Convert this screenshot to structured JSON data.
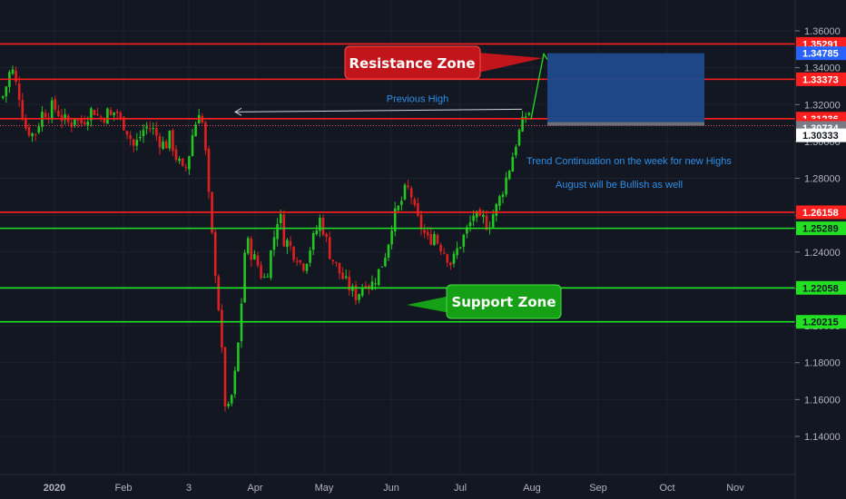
{
  "chart_data": {
    "type": "candlestick",
    "theme": {
      "background": "#131722",
      "up": "#22c722",
      "down": "#e02020",
      "grid": "#1e2230",
      "axis_text": "#b2b5be"
    },
    "x_labels": [
      "2020",
      "Feb",
      "3",
      "Apr",
      "May",
      "Jun",
      "Jul",
      "Aug",
      "Sep",
      "Oct",
      "Nov"
    ],
    "y_ticks": [
      "1.36000",
      "1.34000",
      "1.32000",
      "1.30000",
      "1.28000",
      "1.26000",
      "1.24000",
      "1.22000",
      "1.20000",
      "1.18000",
      "1.16000",
      "1.14000"
    ],
    "ylim": [
      1.13,
      1.372
    ],
    "horizontal_lines": [
      {
        "value": 1.35291,
        "label": "1.35291",
        "color": "#ff1f1f"
      },
      {
        "value": 1.33373,
        "label": "1.33373",
        "color": "#ff1f1f"
      },
      {
        "value": 1.31236,
        "label": "1.31236",
        "color": "#ff1f1f"
      },
      {
        "value": 1.26158,
        "label": "1.26158",
        "color": "#ff1f1f"
      },
      {
        "value": 1.25289,
        "label": "1.25289",
        "color": "#22e022"
      },
      {
        "value": 1.22058,
        "label": "1.22058",
        "color": "#22e022"
      },
      {
        "value": 1.20215,
        "label": "1.20215",
        "color": "#22e022"
      }
    ],
    "price_tags": [
      {
        "value": 1.34785,
        "label": "1.34785",
        "bg": "#2962ff",
        "fg": "#ffffff"
      },
      {
        "value": 1.30855,
        "label": "1.30855",
        "bg": "#ff1f1f",
        "fg": "#ffffff"
      },
      {
        "value": 1.30734,
        "label": "1.30734",
        "bg": "#787b86",
        "fg": "#ffffff"
      },
      {
        "value": 1.30333,
        "label": "1.30333",
        "bg": "#ffffff",
        "fg": "#131722"
      }
    ],
    "target_box": {
      "top": 1.34785,
      "bottom": 1.3105,
      "band_bottom": 1.30855,
      "color": "#1e4a8c"
    },
    "annotations": {
      "resistance": "Resistance Zone",
      "support": "Support Zone",
      "previous_high": "Previous High",
      "note1": "Trend Continuation on the week for new Highs",
      "note2": "August will be Bullish as well"
    },
    "price_path": [
      [
        0,
        1.325
      ],
      [
        4,
        1.322
      ],
      [
        9,
        1.33
      ],
      [
        11,
        1.332
      ],
      [
        15,
        1.343
      ],
      [
        18,
        1.332
      ],
      [
        22,
        1.33
      ],
      [
        26,
        1.318
      ],
      [
        30,
        1.308
      ],
      [
        36,
        1.305
      ],
      [
        40,
        1.303
      ],
      [
        45,
        1.31
      ],
      [
        50,
        1.317
      ],
      [
        55,
        1.315
      ],
      [
        60,
        1.319
      ],
      [
        65,
        1.317
      ],
      [
        70,
        1.313
      ],
      [
        75,
        1.311
      ],
      [
        80,
        1.309
      ],
      [
        85,
        1.314
      ],
      [
        90,
        1.309
      ],
      [
        95,
        1.312
      ],
      [
        100,
        1.315
      ],
      [
        105,
        1.318
      ],
      [
        110,
        1.314
      ],
      [
        115,
        1.312
      ],
      [
        120,
        1.316
      ],
      [
        125,
        1.313
      ],
      [
        130,
        1.318
      ],
      [
        135,
        1.311
      ],
      [
        140,
        1.309
      ],
      [
        145,
        1.303
      ],
      [
        150,
        1.297
      ],
      [
        155,
        1.301
      ],
      [
        160,
        1.306
      ],
      [
        165,
        1.308
      ],
      [
        170,
        1.307
      ],
      [
        175,
        1.303
      ],
      [
        180,
        1.299
      ],
      [
        185,
        1.298
      ],
      [
        190,
        1.303
      ],
      [
        195,
        1.293
      ],
      [
        200,
        1.288
      ],
      [
        205,
        1.282
      ],
      [
        210,
        1.291
      ],
      [
        214,
        1.303
      ],
      [
        218,
        1.31
      ],
      [
        222,
        1.318
      ],
      [
        226,
        1.308
      ],
      [
        230,
        1.287
      ],
      [
        234,
        1.258
      ],
      [
        238,
        1.238
      ],
      [
        242,
        1.218
      ],
      [
        246,
        1.192
      ],
      [
        249,
        1.165
      ],
      [
        252,
        1.15
      ],
      [
        256,
        1.158
      ],
      [
        260,
        1.168
      ],
      [
        264,
        1.185
      ],
      [
        268,
        1.21
      ],
      [
        272,
        1.24
      ],
      [
        276,
        1.245
      ],
      [
        280,
        1.238
      ],
      [
        285,
        1.235
      ],
      [
        290,
        1.228
      ],
      [
        295,
        1.225
      ],
      [
        300,
        1.238
      ],
      [
        305,
        1.25
      ],
      [
        310,
        1.263
      ],
      [
        315,
        1.247
      ],
      [
        320,
        1.245
      ],
      [
        325,
        1.24
      ],
      [
        330,
        1.238
      ],
      [
        335,
        1.232
      ],
      [
        340,
        1.236
      ],
      [
        345,
        1.244
      ],
      [
        350,
        1.25
      ],
      [
        355,
        1.258
      ],
      [
        360,
        1.25
      ],
      [
        365,
        1.24
      ],
      [
        370,
        1.235
      ],
      [
        375,
        1.23
      ],
      [
        380,
        1.226
      ],
      [
        385,
        1.222
      ],
      [
        390,
        1.219
      ],
      [
        395,
        1.216
      ],
      [
        400,
        1.22
      ],
      [
        405,
        1.225
      ],
      [
        410,
        1.221
      ],
      [
        415,
        1.225
      ],
      [
        420,
        1.23
      ],
      [
        425,
        1.236
      ],
      [
        430,
        1.245
      ],
      [
        435,
        1.258
      ],
      [
        440,
        1.262
      ],
      [
        445,
        1.268
      ],
      [
        450,
        1.275
      ],
      [
        455,
        1.272
      ],
      [
        460,
        1.26
      ],
      [
        465,
        1.255
      ],
      [
        470,
        1.25
      ],
      [
        475,
        1.245
      ],
      [
        480,
        1.251
      ],
      [
        485,
        1.245
      ],
      [
        490,
        1.242
      ],
      [
        495,
        1.238
      ],
      [
        500,
        1.233
      ],
      [
        505,
        1.24
      ],
      [
        510,
        1.245
      ],
      [
        515,
        1.25
      ],
      [
        520,
        1.255
      ],
      [
        525,
        1.262
      ],
      [
        530,
        1.255
      ],
      [
        535,
        1.258
      ],
      [
        540,
        1.254
      ],
      [
        545,
        1.26
      ],
      [
        550,
        1.265
      ],
      [
        555,
        1.272
      ],
      [
        560,
        1.28
      ],
      [
        565,
        1.288
      ],
      [
        570,
        1.298
      ],
      [
        575,
        1.306
      ],
      [
        580,
        1.312
      ],
      [
        583,
        1.316
      ]
    ]
  }
}
